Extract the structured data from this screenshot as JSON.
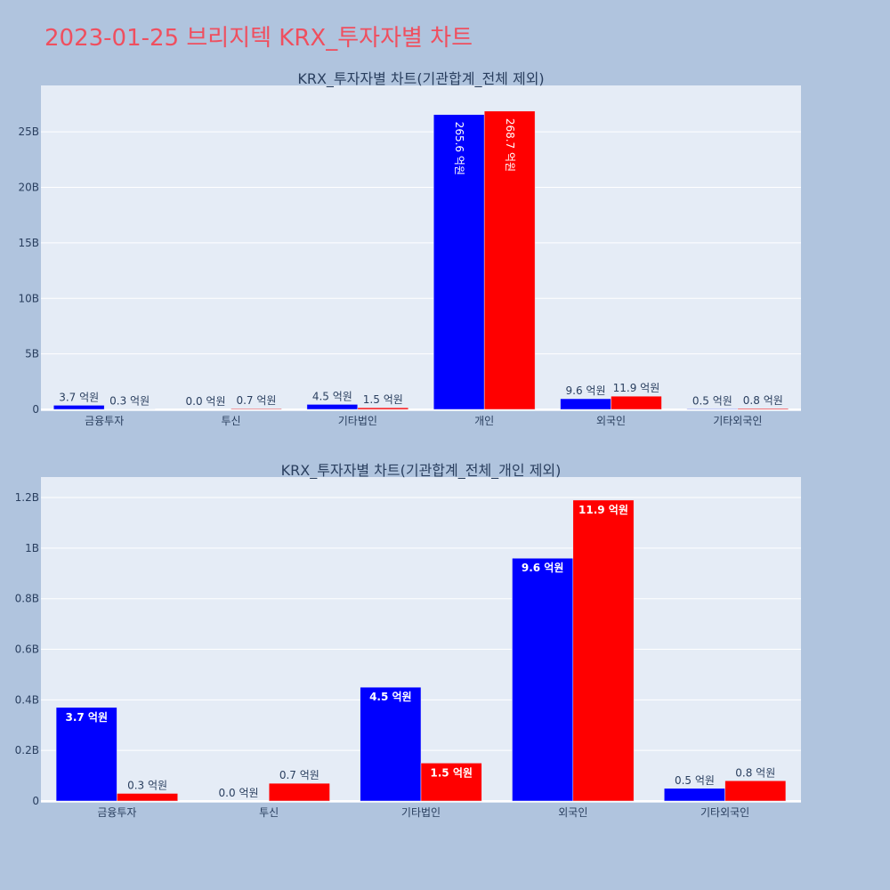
{
  "page": {
    "title": "2023-01-25 브리지텍 KRX_투자자별 차트",
    "background": "#b0c4de",
    "plot_background": "#e5ecf6",
    "title_color": "#ef4f5f"
  },
  "chart_data": [
    {
      "type": "bar",
      "title": "KRX_투자자별 차트(기관합계_전체 제외)",
      "categories": [
        "금융투자",
        "투신",
        "기타법인",
        "개인",
        "외국인",
        "기타외국인"
      ],
      "series": [
        {
          "color": "#0000ff",
          "values": [
            370000000,
            0,
            450000000,
            26560000000,
            960000000,
            50000000
          ],
          "labels": [
            "3.7 억원",
            "0.0 억원",
            "4.5 억원",
            "265.6 억원",
            "9.6 억원",
            "0.5 억원"
          ]
        },
        {
          "color": "#ff0000",
          "values": [
            30000000,
            70000000,
            150000000,
            26870000000,
            1190000000,
            80000000
          ],
          "labels": [
            "0.3 억원",
            "0.7 억원",
            "1.5 억원",
            "268.7 억원",
            "11.9 억원",
            "0.8 억원"
          ]
        }
      ],
      "yticks": [
        0,
        5000000000,
        10000000000,
        15000000000,
        20000000000,
        25000000000
      ],
      "ytick_labels": [
        "0",
        "5B",
        "10B",
        "15B",
        "20B",
        "25B"
      ],
      "ylim": [
        0,
        28700000000
      ],
      "grid": true,
      "legend": "none"
    },
    {
      "type": "bar",
      "title": "KRX_투자자별 차트(기관합계_전체_개인 제외)",
      "categories": [
        "금융투자",
        "투신",
        "기타법인",
        "외국인",
        "기타외국인"
      ],
      "series": [
        {
          "color": "#0000ff",
          "values": [
            370000000,
            0,
            450000000,
            960000000,
            50000000
          ],
          "labels": [
            "3.7 억원",
            "0.0 억원",
            "4.5 억원",
            "9.6 억원",
            "0.5 억원"
          ]
        },
        {
          "color": "#ff0000",
          "values": [
            30000000,
            70000000,
            150000000,
            1190000000,
            80000000
          ],
          "labels": [
            "0.3 억원",
            "0.7 억원",
            "1.5 억원",
            "11.9 억원",
            "0.8 억원"
          ]
        }
      ],
      "yticks": [
        0,
        200000000,
        400000000,
        600000000,
        800000000,
        1000000000,
        1200000000
      ],
      "ytick_labels": [
        "0",
        "0.2B",
        "0.4B",
        "0.6B",
        "0.8B",
        "1B",
        "1.2B"
      ],
      "ylim": [
        0,
        1260000000
      ],
      "grid": true,
      "legend": "none"
    }
  ]
}
